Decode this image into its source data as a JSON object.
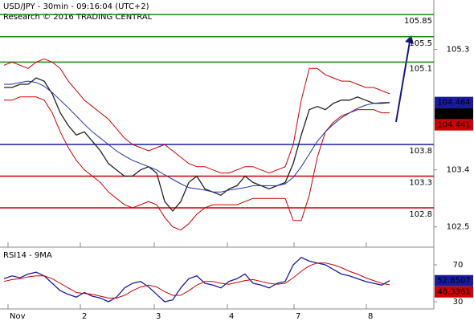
{
  "chart_data": [
    {
      "type": "line",
      "title": "USD/JPY - 30min - 09:16:04 (UTC+2)",
      "subtitle": "Research © 2016 TRADING CENTRAL",
      "xlim": [
        -0.5,
        53.5
      ],
      "xticks": [
        {
          "value": 0.5,
          "label": "Nov"
        },
        {
          "value": 9.5,
          "label": "2"
        },
        {
          "value": 18.7,
          "label": "3"
        },
        {
          "value": 27.8,
          "label": "4"
        },
        {
          "value": 36.1,
          "label": "7"
        },
        {
          "value": 45.1,
          "label": "8"
        }
      ],
      "ylim": [
        102.18,
        106.08
      ],
      "yticks": [
        102.5,
        103.4,
        105.3
      ],
      "series": [
        {
          "color": "#222222",
          "values": [
            104.7,
            104.7,
            104.75,
            104.75,
            104.85,
            104.8,
            104.6,
            104.3,
            104.1,
            103.95,
            104.0,
            103.85,
            103.7,
            103.5,
            103.4,
            103.3,
            103.3,
            103.4,
            103.45,
            103.35,
            102.9,
            102.75,
            102.9,
            103.2,
            103.3,
            103.1,
            103.05,
            103.0,
            103.1,
            103.15,
            103.3,
            103.2,
            103.15,
            103.1,
            103.15,
            103.2,
            103.5,
            103.95,
            104.35,
            104.4,
            104.35,
            104.45,
            104.5,
            104.5,
            104.55,
            104.5,
            104.45,
            104.45,
            104.46
          ]
        },
        {
          "color": "#cc0000",
          "values": [
            105.05,
            105.1,
            105.05,
            105.0,
            105.1,
            105.15,
            105.1,
            105.0,
            104.8,
            104.65,
            104.5,
            104.4,
            104.3,
            104.2,
            104.05,
            103.9,
            103.8,
            103.75,
            103.7,
            103.75,
            103.8,
            103.7,
            103.6,
            103.5,
            103.45,
            103.45,
            103.4,
            103.35,
            103.35,
            103.4,
            103.45,
            103.45,
            103.4,
            103.35,
            103.4,
            103.45,
            103.8,
            104.5,
            105.0,
            105.0,
            104.9,
            104.85,
            104.8,
            104.8,
            104.75,
            104.7,
            104.7,
            104.65,
            104.6
          ]
        },
        {
          "color": "#cc0000",
          "values": [
            104.5,
            104.5,
            104.55,
            104.55,
            104.55,
            104.5,
            104.3,
            104.0,
            103.75,
            103.55,
            103.4,
            103.3,
            103.2,
            103.05,
            102.95,
            102.85,
            102.8,
            102.85,
            102.9,
            102.85,
            102.65,
            102.5,
            102.45,
            102.55,
            102.7,
            102.8,
            102.85,
            102.85,
            102.85,
            102.85,
            102.9,
            102.95,
            102.95,
            102.95,
            102.95,
            102.95,
            102.6,
            102.6,
            103.0,
            103.6,
            104.0,
            104.15,
            104.25,
            104.3,
            104.35,
            104.35,
            104.35,
            104.3,
            104.3
          ]
        },
        {
          "color": "#2233aa",
          "values": [
            104.75,
            104.75,
            104.78,
            104.8,
            104.78,
            104.72,
            104.62,
            104.5,
            104.38,
            104.25,
            104.12,
            104.0,
            103.9,
            103.8,
            103.7,
            103.62,
            103.55,
            103.5,
            103.45,
            103.4,
            103.32,
            103.25,
            103.18,
            103.12,
            103.1,
            103.08,
            103.05,
            103.05,
            103.08,
            103.1,
            103.12,
            103.15,
            103.15,
            103.15,
            103.15,
            103.18,
            103.28,
            103.45,
            103.65,
            103.85,
            104.0,
            104.12,
            104.22,
            104.3,
            104.37,
            104.42,
            104.45,
            104.46,
            104.464
          ]
        }
      ],
      "levels": [
        {
          "value": 105.85,
          "color": "#1a8a1a"
        },
        {
          "value": 105.5,
          "color": "#1a8a1a"
        },
        {
          "value": 105.1,
          "color": "#1a8a1a"
        },
        {
          "value": 103.8,
          "color": "#1a1aa0"
        },
        {
          "value": 103.3,
          "color": "#cc0000"
        },
        {
          "value": 102.8,
          "color": "#cc0000"
        }
      ],
      "last_labels": [
        {
          "value": 104.464,
          "color": "#1a1aa0"
        },
        {
          "value": 104.46,
          "color": "#000000"
        },
        {
          "value": 104.441,
          "color": "#cc0000"
        }
      ]
    },
    {
      "type": "line",
      "title": "RSI14 - 9MA",
      "xlim": [
        -0.5,
        53.5
      ],
      "ylim": [
        22.2,
        87.4
      ],
      "yticks": [
        30,
        70
      ],
      "series": [
        {
          "color": "#1a1aa0",
          "values": [
            55,
            58,
            56,
            60,
            62,
            58,
            50,
            42,
            38,
            35,
            40,
            36,
            34,
            30,
            35,
            45,
            50,
            52,
            46,
            38,
            30,
            32,
            45,
            55,
            58,
            50,
            48,
            45,
            52,
            55,
            60,
            50,
            48,
            45,
            50,
            52,
            70,
            78,
            74,
            72,
            70,
            65,
            60,
            58,
            55,
            52,
            50,
            48,
            52.85
          ]
        },
        {
          "color": "#cc0000",
          "values": [
            52,
            54,
            55,
            57,
            58,
            58,
            55,
            50,
            45,
            40,
            39,
            38,
            36,
            34,
            34,
            37,
            42,
            46,
            48,
            46,
            41,
            37,
            37,
            42,
            48,
            52,
            52,
            50,
            49,
            51,
            53,
            54,
            52,
            50,
            49,
            50,
            56,
            63,
            69,
            72,
            72,
            70,
            67,
            63,
            60,
            56,
            53,
            50,
            48.34
          ]
        }
      ],
      "last_labels": [
        {
          "value": 52.8507,
          "color": "#1a1aa0"
        },
        {
          "value": 48.3361,
          "color": "#cc0000"
        }
      ]
    }
  ]
}
